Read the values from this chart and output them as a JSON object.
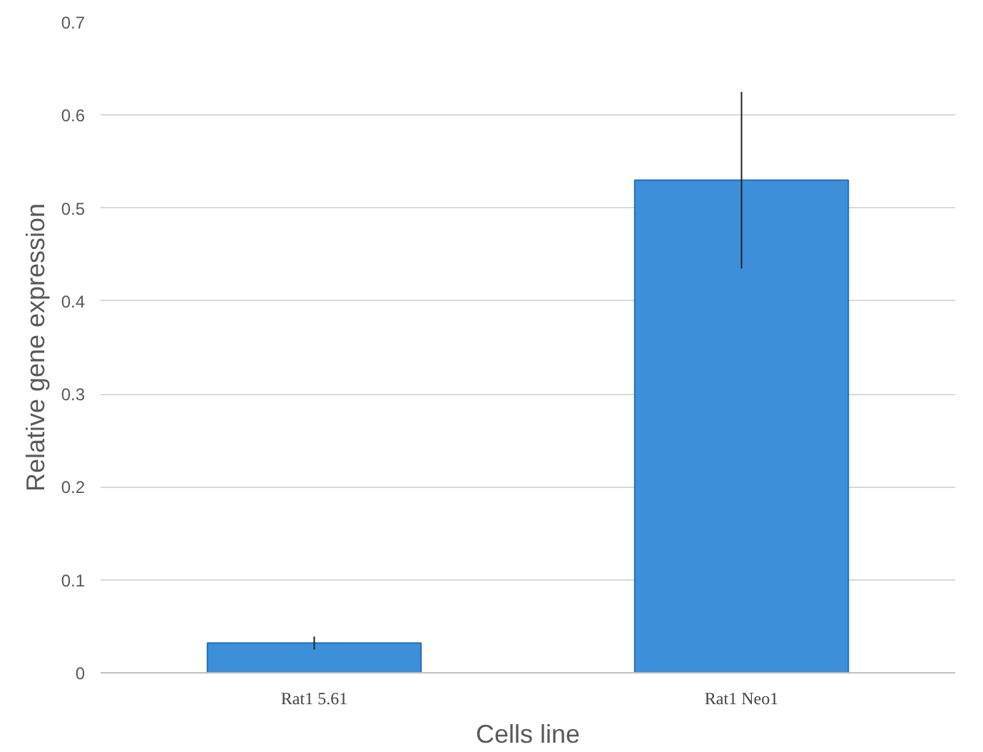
{
  "chart_data": {
    "type": "bar",
    "xlabel": "Cells line",
    "ylabel": "Relative gene expression",
    "categories": [
      "Rat1 5.61",
      "Rat1 Neo1"
    ],
    "values": [
      0.032,
      0.53
    ],
    "errors": [
      0.007,
      0.095
    ],
    "color": "#3d8fd9",
    "ylim": [
      0,
      0.7
    ],
    "yticks": [
      0,
      0.1,
      0.2,
      0.3,
      0.4,
      0.5,
      0.6,
      0.7
    ],
    "grid": "y"
  }
}
